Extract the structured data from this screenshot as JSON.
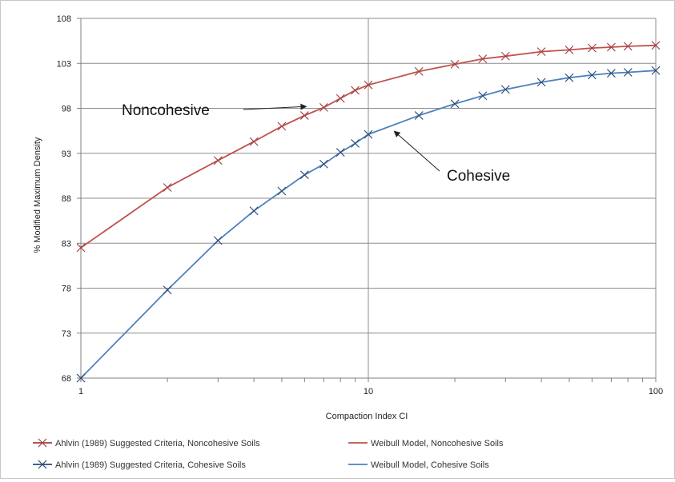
{
  "chart_data": {
    "type": "line",
    "x_scale": "log",
    "xlabel": "Compaction Index CI",
    "ylabel": "% Modified Maximum Density",
    "xlim": [
      1,
      100
    ],
    "ylim": [
      68,
      108
    ],
    "x_ticks": [
      "1",
      "10",
      "100"
    ],
    "y_ticks": [
      "68",
      "73",
      "78",
      "83",
      "88",
      "93",
      "98",
      "103",
      "108"
    ],
    "grid": true,
    "legend_position": "bottom",
    "annotations": [
      {
        "text": "Noncohesive",
        "points_to": {
          "x": 6,
          "y": 97.4
        }
      },
      {
        "text": "Cohesive",
        "points_to": {
          "x": 12,
          "y": 95.8
        }
      }
    ],
    "series": [
      {
        "name": "Ahlvin (1989) Suggested Criteria, Noncohesive Soils",
        "kind": "markers",
        "color": "#a04040",
        "x": [
          1,
          2,
          3,
          4,
          5,
          6,
          7,
          8,
          9,
          10,
          15,
          20,
          25,
          30,
          40,
          50,
          60,
          70,
          80,
          100
        ],
        "y": [
          82.5,
          89.2,
          92.2,
          94.3,
          96.0,
          97.2,
          98.1,
          99.1,
          100.0,
          100.6,
          102.1,
          102.9,
          103.5,
          103.8,
          104.3,
          104.5,
          104.7,
          104.8,
          104.9,
          105.0
        ]
      },
      {
        "name": "Weibull Model, Noncohesive Soils",
        "kind": "line",
        "color": "#c0504d",
        "x": [
          1,
          2,
          3,
          4,
          5,
          6,
          7,
          8,
          9,
          10,
          15,
          20,
          25,
          30,
          40,
          50,
          60,
          70,
          80,
          100
        ],
        "y": [
          82.5,
          89.2,
          92.2,
          94.3,
          96.0,
          97.2,
          98.1,
          99.1,
          100.0,
          100.6,
          102.1,
          102.9,
          103.5,
          103.8,
          104.3,
          104.5,
          104.7,
          104.8,
          104.9,
          105.0
        ]
      },
      {
        "name": "Ahlvin (1989) Suggested Criteria, Cohesive Soils",
        "kind": "markers",
        "color": "#2c4d75",
        "x": [
          1,
          2,
          3,
          4,
          5,
          6,
          7,
          8,
          9,
          10,
          15,
          20,
          25,
          30,
          40,
          50,
          60,
          70,
          80,
          100
        ],
        "y": [
          68.0,
          77.8,
          83.3,
          86.6,
          88.8,
          90.6,
          91.8,
          93.1,
          94.1,
          95.1,
          97.2,
          98.5,
          99.4,
          100.1,
          100.9,
          101.4,
          101.7,
          101.9,
          102.0,
          102.2
        ]
      },
      {
        "name": "Weibull Model, Cohesive Soils",
        "kind": "line",
        "color": "#4f81bd",
        "x": [
          1,
          2,
          3,
          4,
          5,
          6,
          7,
          8,
          9,
          10,
          15,
          20,
          25,
          30,
          40,
          50,
          60,
          70,
          80,
          100
        ],
        "y": [
          68.0,
          77.8,
          83.3,
          86.6,
          88.8,
          90.6,
          91.8,
          93.1,
          94.1,
          95.1,
          97.2,
          98.5,
          99.4,
          100.1,
          100.9,
          101.4,
          101.7,
          101.9,
          102.0,
          102.2
        ]
      }
    ]
  }
}
